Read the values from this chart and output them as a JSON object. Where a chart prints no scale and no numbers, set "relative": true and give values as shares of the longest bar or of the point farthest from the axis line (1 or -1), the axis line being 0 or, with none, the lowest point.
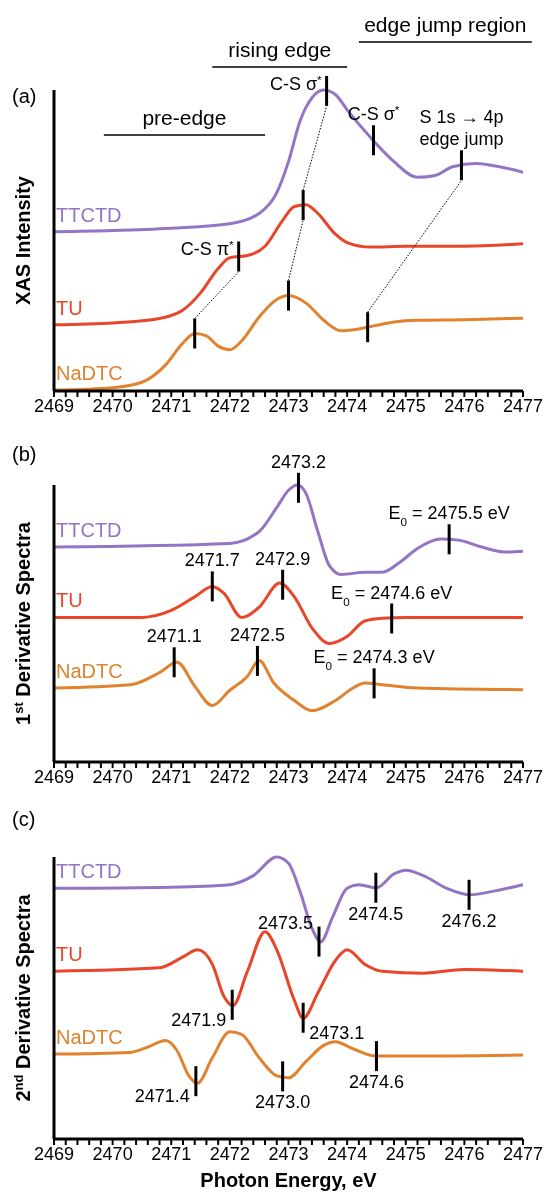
{
  "chart_data": [
    {
      "type": "line",
      "relative": true,
      "ylabel": "XAS Intensity",
      "xlim": [
        2469,
        2477
      ],
      "xticks": [
        2469,
        {
          "value": 2469.2,
          "label": null
        },
        {
          "value": 2469.4,
          "label": null
        },
        {
          "value": 2469.6,
          "label": null
        },
        {
          "value": 2469.8,
          "label": null
        },
        2470,
        {
          "value": 2470.2,
          "label": null
        },
        {
          "value": 2470.4,
          "label": null
        },
        {
          "value": 2470.6,
          "label": null
        },
        {
          "value": 2470.8,
          "label": null
        },
        2471,
        {
          "value": 2471.2,
          "label": null
        },
        {
          "value": 2471.4,
          "label": null
        },
        {
          "value": 2471.6,
          "label": null
        },
        {
          "value": 2471.8,
          "label": null
        },
        2472,
        {
          "value": 2472.2,
          "label": null
        },
        {
          "value": 2472.4,
          "label": null
        },
        {
          "value": 2472.6,
          "label": null
        },
        {
          "value": 2472.8,
          "label": null
        },
        2473,
        {
          "value": 2473.2,
          "label": null
        },
        {
          "value": 2473.4,
          "label": null
        },
        {
          "value": 2473.6,
          "label": null
        },
        {
          "value": 2473.8,
          "label": null
        },
        2474,
        {
          "value": 2474.2,
          "label": null
        },
        {
          "value": 2474.4,
          "label": null
        },
        {
          "value": 2474.6,
          "label": null
        },
        {
          "value": 2474.8,
          "label": null
        },
        2475,
        {
          "value": 2475.2,
          "label": null
        },
        {
          "value": 2475.4,
          "label": null
        },
        {
          "value": 2475.6,
          "label": null
        },
        {
          "value": 2475.8,
          "label": null
        },
        2476,
        {
          "value": 2476.2,
          "label": null
        },
        {
          "value": 2476.4,
          "label": null
        },
        {
          "value": 2476.6,
          "label": null
        },
        {
          "value": 2476.8,
          "label": null
        },
        2477
      ],
      "series": [
        {
          "name": "TTCTD",
          "color": "#9475c4",
          "x": [
            2469,
            2470,
            2471,
            2472,
            2472.5,
            2472.8,
            2473.0,
            2473.2,
            2473.4,
            2473.6,
            2473.8,
            2474.0,
            2474.4,
            2474.8,
            2475.2,
            2475.5,
            2475.8,
            2476.2,
            2476.6,
            2477
          ],
          "values": [
            0.529,
            0.533,
            0.541,
            0.556,
            0.59,
            0.659,
            0.762,
            0.899,
            0.974,
            1.0,
            0.985,
            0.934,
            0.842,
            0.762,
            0.71,
            0.716,
            0.745,
            0.756,
            0.745,
            0.727
          ]
        },
        {
          "name": "TU",
          "color": "#e8462a",
          "x": [
            2469,
            2470,
            2470.8,
            2471.2,
            2471.5,
            2471.8,
            2472.0,
            2472.3,
            2472.6,
            2472.9,
            2473.1,
            2473.3,
            2473.5,
            2473.8,
            2474.0,
            2474.4,
            2475,
            2476,
            2477
          ],
          "values": [
            0.22,
            0.226,
            0.241,
            0.269,
            0.326,
            0.407,
            0.443,
            0.45,
            0.481,
            0.567,
            0.613,
            0.619,
            0.59,
            0.521,
            0.493,
            0.478,
            0.481,
            0.481,
            0.489
          ]
        },
        {
          "name": "NaDTC",
          "color": "#e0822e",
          "x": [
            2469,
            2470,
            2470.5,
            2470.9,
            2471.2,
            2471.4,
            2471.6,
            2471.8,
            2472.0,
            2472.2,
            2472.5,
            2472.8,
            2473.0,
            2473.3,
            2473.6,
            2473.9,
            2474.2,
            2474.5,
            2474.8,
            2475.2,
            2476,
            2477
          ],
          "values": [
            0.003,
            0.011,
            0.029,
            0.086,
            0.16,
            0.191,
            0.183,
            0.149,
            0.137,
            0.166,
            0.246,
            0.304,
            0.317,
            0.292,
            0.235,
            0.2,
            0.206,
            0.218,
            0.229,
            0.235,
            0.237,
            0.242
          ]
        }
      ],
      "annotations": [
        "(a)",
        {
          "text": "C-S π$^{*}$",
          "x": 2472.15,
          "y": 0.447
        },
        {
          "text": "C-S σ$^{*}$",
          "x": 2473.65,
          "y": 0.997
        },
        {
          "text": "C-S σ$^{*}$",
          "x": 2474.45,
          "y": 0.833
        },
        {
          "text": "S 1s → 4p\nedge jump",
          "x": 2475.95,
          "y": 0.75
        },
        "pre-edge",
        "rising edge",
        "edge jump region"
      ]
    },
    {
      "type": "line",
      "relative": true,
      "ylabel": "1$^{st}$ Derivative  Spectra",
      "xlim": [
        2469,
        2477
      ],
      "xticks": [
        2469,
        {
          "value": 2469.2,
          "label": null
        },
        {
          "value": 2469.4,
          "label": null
        },
        {
          "value": 2469.6,
          "label": null
        },
        {
          "value": 2469.8,
          "label": null
        },
        2470,
        {
          "value": 2470.2,
          "label": null
        },
        {
          "value": 2470.4,
          "label": null
        },
        {
          "value": 2470.6,
          "label": null
        },
        {
          "value": 2470.8,
          "label": null
        },
        2471,
        {
          "value": 2471.2,
          "label": null
        },
        {
          "value": 2471.4,
          "label": null
        },
        {
          "value": 2471.6,
          "label": null
        },
        {
          "value": 2471.8,
          "label": null
        },
        2472,
        {
          "value": 2472.2,
          "label": null
        },
        {
          "value": 2472.4,
          "label": null
        },
        {
          "value": 2472.6,
          "label": null
        },
        {
          "value": 2472.8,
          "label": null
        },
        2473,
        {
          "value": 2473.2,
          "label": null
        },
        {
          "value": 2473.4,
          "label": null
        },
        {
          "value": 2473.6,
          "label": null
        },
        {
          "value": 2473.8,
          "label": null
        },
        2474,
        {
          "value": 2474.2,
          "label": null
        },
        {
          "value": 2474.4,
          "label": null
        },
        {
          "value": 2474.6,
          "label": null
        },
        {
          "value": 2474.8,
          "label": null
        },
        2475,
        {
          "value": 2475.2,
          "label": null
        },
        {
          "value": 2475.4,
          "label": null
        },
        {
          "value": 2475.6,
          "label": null
        },
        {
          "value": 2475.8,
          "label": null
        },
        2476,
        {
          "value": 2476.2,
          "label": null
        },
        {
          "value": 2476.4,
          "label": null
        },
        {
          "value": 2476.6,
          "label": null
        },
        {
          "value": 2476.8,
          "label": null
        },
        2477
      ],
      "series": [
        {
          "name": "TTCTD",
          "color": "#9475c4",
          "x": [
            2469,
            2472,
            2472.5,
            2472.8,
            2473.0,
            2473.15,
            2473.3,
            2473.5,
            2473.7,
            2473.9,
            2474.3,
            2474.6,
            2474.9,
            2475.2,
            2475.6,
            2475.9,
            2476.3,
            2476.7,
            2477
          ],
          "values": [
            0.776,
            0.789,
            0.832,
            0.919,
            0.981,
            1.0,
            0.969,
            0.832,
            0.708,
            0.677,
            0.685,
            0.685,
            0.721,
            0.771,
            0.805,
            0.801,
            0.776,
            0.758,
            0.761
          ]
        },
        {
          "name": "TU",
          "color": "#e8462a",
          "x": [
            2469,
            2470.5,
            2471.0,
            2471.4,
            2471.7,
            2471.9,
            2472.2,
            2472.5,
            2472.85,
            2473.1,
            2473.4,
            2473.7,
            2474.0,
            2474.3,
            2474.6,
            2475,
            2477
          ],
          "values": [
            0.522,
            0.522,
            0.547,
            0.596,
            0.634,
            0.609,
            0.522,
            0.559,
            0.646,
            0.596,
            0.484,
            0.428,
            0.453,
            0.509,
            0.519,
            0.522,
            0.522
          ]
        },
        {
          "name": "NaDTC",
          "color": "#e0822e",
          "x": [
            2469,
            2470.3,
            2470.8,
            2471.1,
            2471.4,
            2471.7,
            2472.0,
            2472.3,
            2472.5,
            2472.75,
            2473.1,
            2473.4,
            2473.8,
            2474.1,
            2474.3,
            2474.6,
            2475.2,
            2477
          ],
          "values": [
            0.267,
            0.279,
            0.323,
            0.36,
            0.274,
            0.204,
            0.259,
            0.31,
            0.366,
            0.285,
            0.222,
            0.185,
            0.222,
            0.267,
            0.285,
            0.279,
            0.267,
            0.261
          ]
        }
      ],
      "annotations": [
        "(b)",
        {
          "text": "2473.2",
          "x": 2473.17,
          "y": 0.99
        },
        {
          "text": "E$_{0}$ = 2475.5 eV",
          "x": 2475.74,
          "y": 0.804
        },
        {
          "text": "2471.7",
          "x": 2471.7,
          "y": 0.634
        },
        {
          "text": "2472.9",
          "x": 2472.9,
          "y": 0.64
        },
        {
          "text": "E$_{0}$ = 2474.6 eV",
          "x": 2474.76,
          "y": 0.518
        },
        {
          "text": "2471.1",
          "x": 2471.05,
          "y": 0.36
        },
        {
          "text": "2472.5",
          "x": 2472.47,
          "y": 0.365
        },
        {
          "text": "E$_{0}$ = 2474.3 eV",
          "x": 2474.46,
          "y": 0.284
        }
      ]
    },
    {
      "type": "line",
      "relative": true,
      "ylabel": "2$^{nd}$ Derivative  Spectra",
      "xlabel": "Photon Energy, eV",
      "xlim": [
        2469,
        2477
      ],
      "xticks": [
        2469,
        {
          "value": 2469.2,
          "label": null
        },
        {
          "value": 2469.4,
          "label": null
        },
        {
          "value": 2469.6,
          "label": null
        },
        {
          "value": 2469.8,
          "label": null
        },
        2470,
        {
          "value": 2470.2,
          "label": null
        },
        {
          "value": 2470.4,
          "label": null
        },
        {
          "value": 2470.6,
          "label": null
        },
        {
          "value": 2470.8,
          "label": null
        },
        2471,
        {
          "value": 2471.2,
          "label": null
        },
        {
          "value": 2471.4,
          "label": null
        },
        {
          "value": 2471.6,
          "label": null
        },
        {
          "value": 2471.8,
          "label": null
        },
        2472,
        {
          "value": 2472.2,
          "label": null
        },
        {
          "value": 2472.4,
          "label": null
        },
        {
          "value": 2472.6,
          "label": null
        },
        {
          "value": 2472.8,
          "label": null
        },
        2473,
        {
          "value": 2473.2,
          "label": null
        },
        {
          "value": 2473.4,
          "label": null
        },
        {
          "value": 2473.6,
          "label": null
        },
        {
          "value": 2473.8,
          "label": null
        },
        2474,
        {
          "value": 2474.2,
          "label": null
        },
        {
          "value": 2474.4,
          "label": null
        },
        {
          "value": 2474.6,
          "label": null
        },
        {
          "value": 2474.8,
          "label": null
        },
        2475,
        {
          "value": 2475.2,
          "label": null
        },
        {
          "value": 2475.4,
          "label": null
        },
        {
          "value": 2475.6,
          "label": null
        },
        {
          "value": 2475.8,
          "label": null
        },
        2476,
        {
          "value": 2476.2,
          "label": null
        },
        {
          "value": 2476.4,
          "label": null
        },
        {
          "value": 2476.6,
          "label": null
        },
        {
          "value": 2476.8,
          "label": null
        },
        2477
      ],
      "series": [
        {
          "name": "TTCTD",
          "color": "#9475c4",
          "x": [
            2469,
            2471,
            2472,
            2472.4,
            2472.8,
            2473.0,
            2473.2,
            2473.4,
            2473.55,
            2473.75,
            2474.0,
            2474.2,
            2474.5,
            2474.8,
            2475.0,
            2475.3,
            2475.7,
            2476.1,
            2476.5,
            2477
          ],
          "values": [
            0.889,
            0.893,
            0.902,
            0.934,
            1.0,
            0.978,
            0.876,
            0.748,
            0.699,
            0.786,
            0.889,
            0.902,
            0.891,
            0.94,
            0.953,
            0.934,
            0.889,
            0.866,
            0.879,
            0.902
          ]
        },
        {
          "name": "TU",
          "color": "#e8462a",
          "x": [
            2469,
            2470.8,
            2471.2,
            2471.45,
            2471.7,
            2471.9,
            2472.05,
            2472.3,
            2472.6,
            2472.8,
            2473.1,
            2473.25,
            2473.5,
            2473.8,
            2474.0,
            2474.3,
            2474.6,
            2475.3,
            2476,
            2477
          ],
          "values": [
            0.595,
            0.607,
            0.646,
            0.671,
            0.62,
            0.505,
            0.473,
            0.595,
            0.735,
            0.671,
            0.492,
            0.428,
            0.518,
            0.633,
            0.671,
            0.62,
            0.595,
            0.588,
            0.601,
            0.595
          ]
        },
        {
          "name": "NaDTC",
          "color": "#e0822e",
          "x": [
            2469,
            2470.3,
            2470.6,
            2470.9,
            2471.1,
            2471.3,
            2471.45,
            2471.7,
            2472.0,
            2472.2,
            2472.5,
            2472.8,
            2473.0,
            2473.3,
            2473.6,
            2473.8,
            2474.1,
            2474.5,
            2475,
            2477
          ],
          "values": [
            0.301,
            0.307,
            0.326,
            0.349,
            0.313,
            0.224,
            0.198,
            0.288,
            0.38,
            0.371,
            0.288,
            0.224,
            0.217,
            0.275,
            0.332,
            0.345,
            0.32,
            0.294,
            0.294,
            0.298
          ]
        }
      ],
      "annotations": [
        "(c)",
        {
          "text": "2473.5",
          "x": 2473.52,
          "y": 0.7
        },
        {
          "text": "2474.5",
          "x": 2474.49,
          "y": 0.891
        },
        {
          "text": "2476.2",
          "x": 2476.08,
          "y": 0.866
        },
        {
          "text": "2471.9",
          "x": 2472.04,
          "y": 0.476
        },
        {
          "text": "2473.1",
          "x": 2473.25,
          "y": 0.43
        },
        {
          "text": "2471.4",
          "x": 2471.42,
          "y": 0.205
        },
        {
          "text": "2473.0",
          "x": 2472.9,
          "y": 0.222
        },
        {
          "text": "2474.6",
          "x": 2474.5,
          "y": 0.294
        }
      ]
    }
  ]
}
